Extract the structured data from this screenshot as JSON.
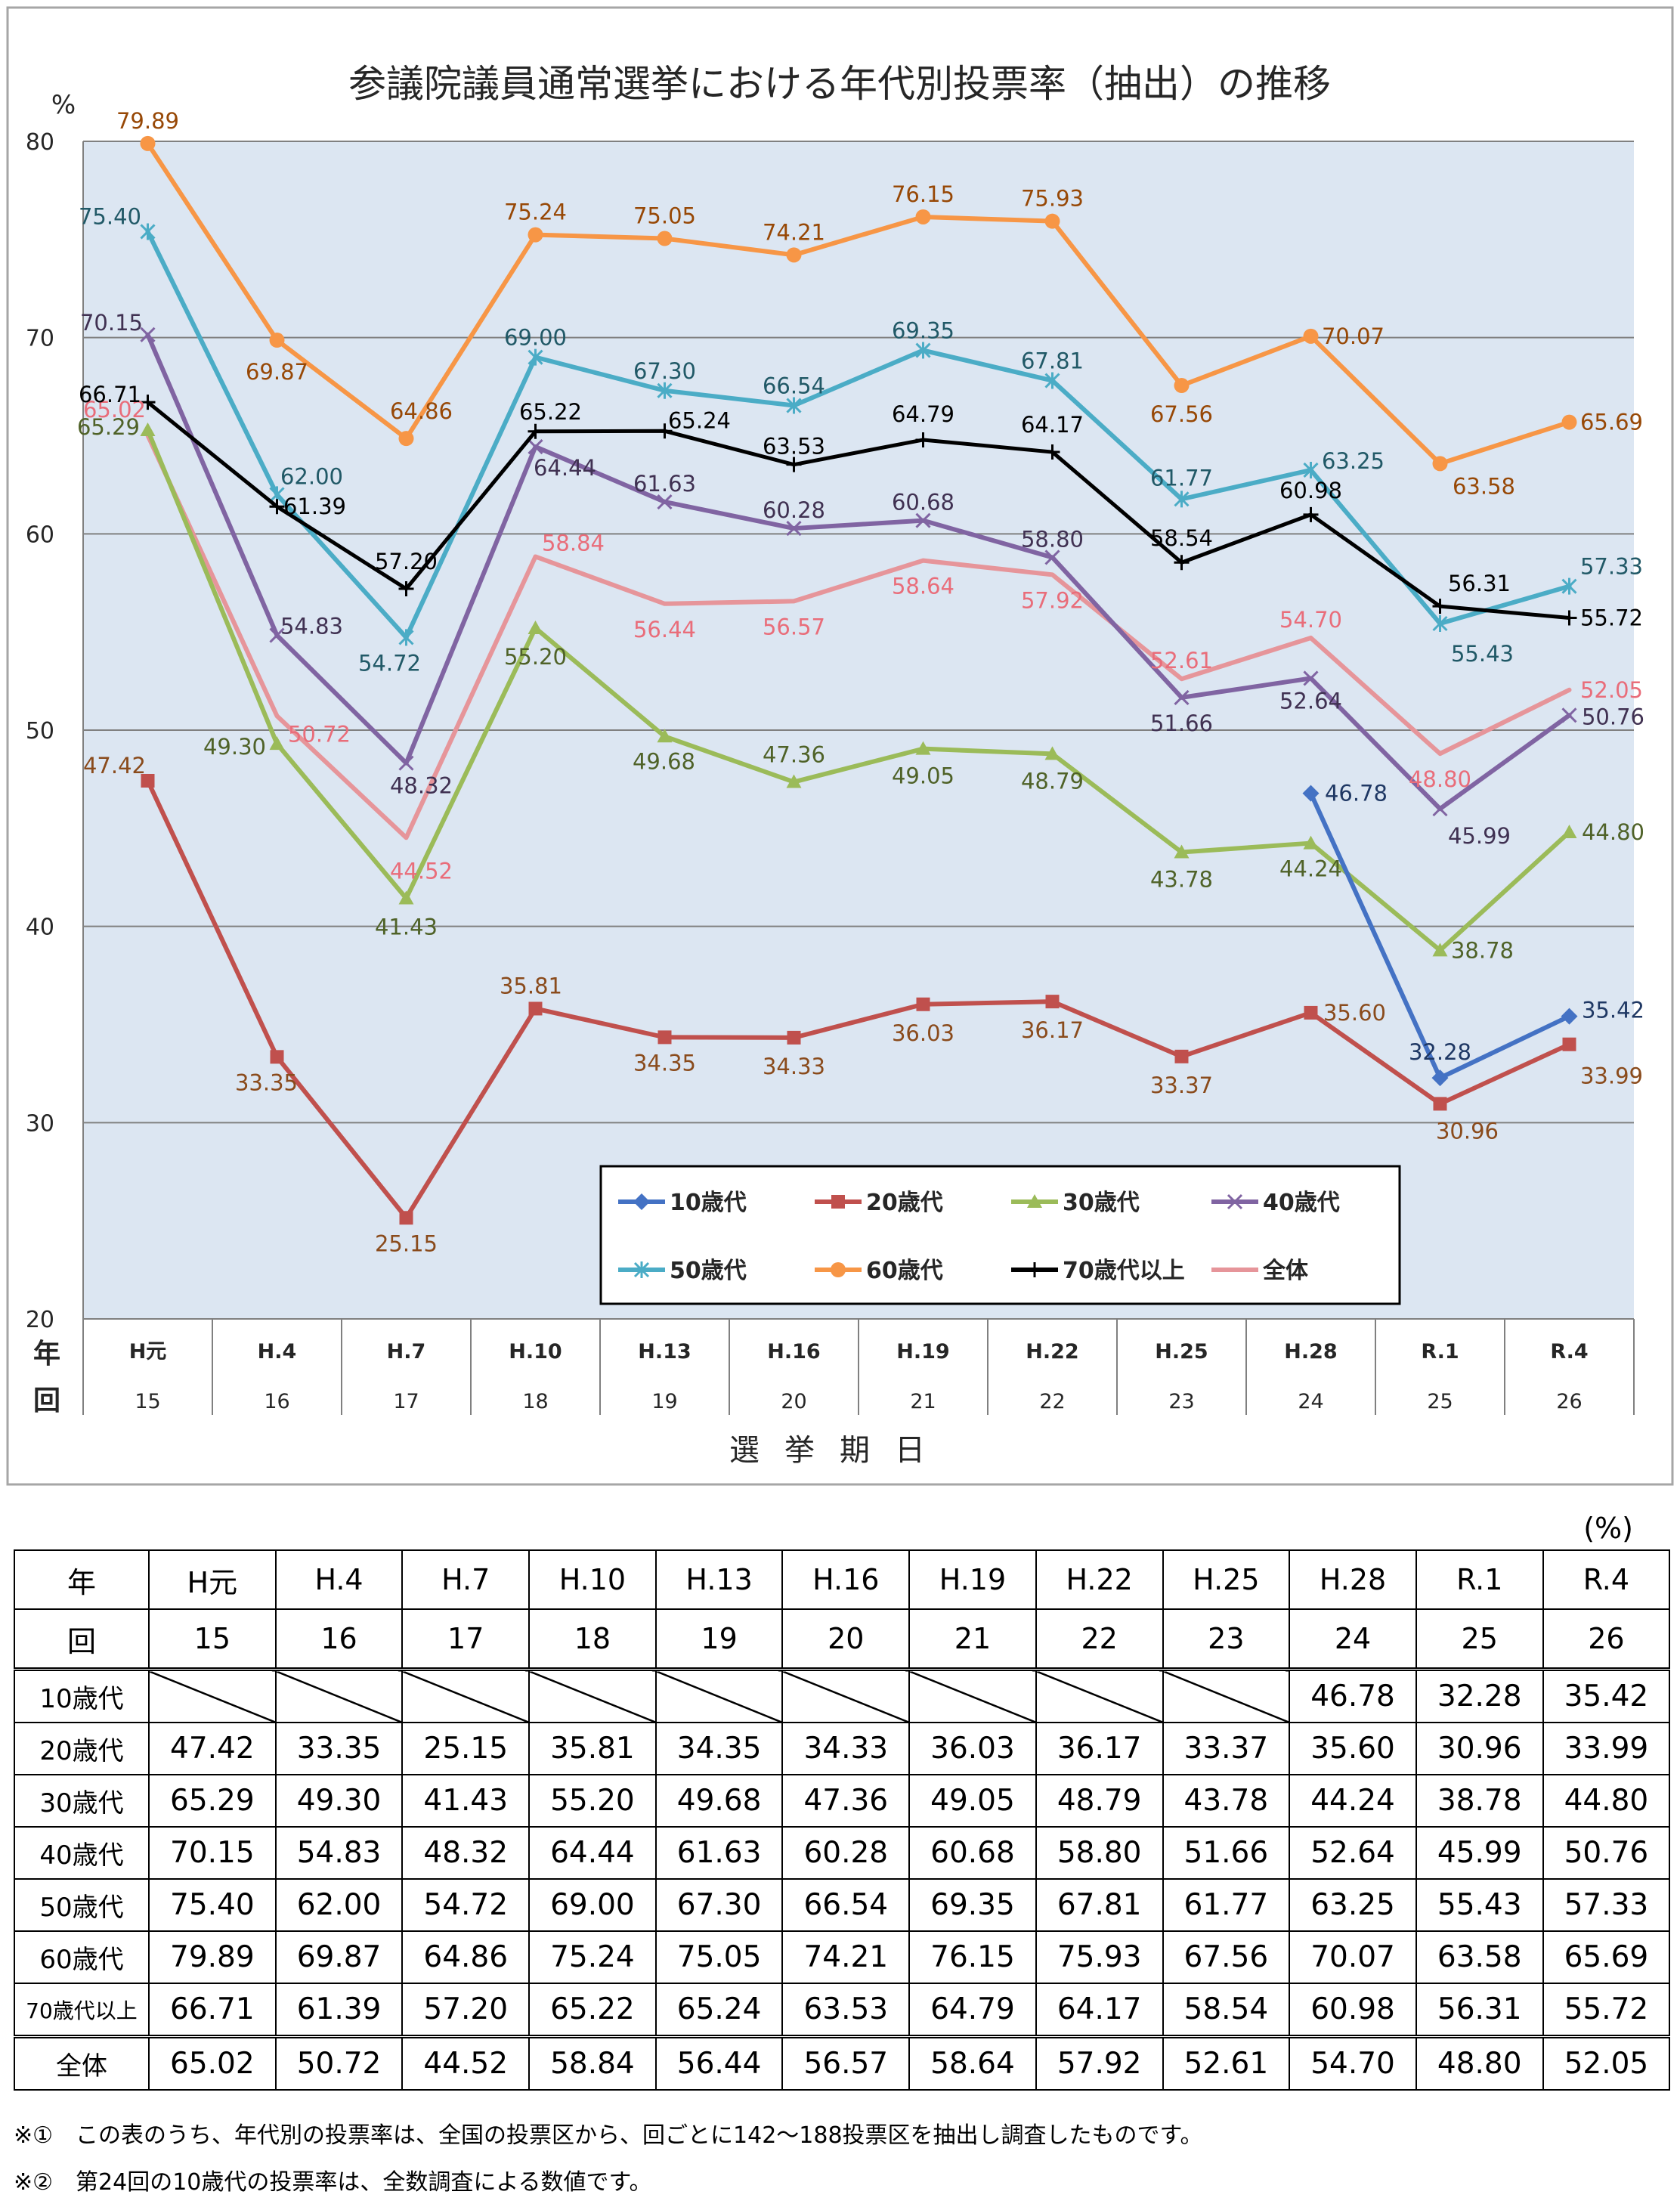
{
  "chart_data": {
    "type": "line",
    "title": "参議院議員通常選挙における年代別投票率（抽出）の推移",
    "ylabel": "%",
    "xlabel": "選挙期日",
    "axis_row_labels": [
      "年",
      "回"
    ],
    "ylim": [
      20,
      80
    ],
    "yticks": [
      20,
      30,
      40,
      50,
      60,
      70,
      80
    ],
    "grid": true,
    "legend_position": "inside-lower-right",
    "categories": [
      "H元",
      "H.4",
      "H.7",
      "H.10",
      "H.13",
      "H.16",
      "H.19",
      "H.22",
      "H.25",
      "H.28",
      "R.1",
      "R.4"
    ],
    "rounds": [
      "15",
      "16",
      "17",
      "18",
      "19",
      "20",
      "21",
      "22",
      "23",
      "24",
      "25",
      "26"
    ],
    "series": [
      {
        "name": "10歳代",
        "color": "#4472c4",
        "marker": "diamond",
        "values": [
          null,
          null,
          null,
          null,
          null,
          null,
          null,
          null,
          null,
          46.78,
          32.28,
          35.42
        ]
      },
      {
        "name": "20歳代",
        "color": "#c0504d",
        "marker": "square",
        "values": [
          47.42,
          33.35,
          25.15,
          35.81,
          34.35,
          34.33,
          36.03,
          36.17,
          33.37,
          35.6,
          30.96,
          33.99
        ]
      },
      {
        "name": "30歳代",
        "color": "#9bbb59",
        "marker": "triangle",
        "values": [
          65.29,
          49.3,
          41.43,
          55.2,
          49.68,
          47.36,
          49.05,
          48.79,
          43.78,
          44.24,
          38.78,
          44.8
        ]
      },
      {
        "name": "40歳代",
        "color": "#8064a2",
        "marker": "x",
        "values": [
          70.15,
          54.83,
          48.32,
          64.44,
          61.63,
          60.28,
          60.68,
          58.8,
          51.66,
          52.64,
          45.99,
          50.76
        ]
      },
      {
        "name": "50歳代",
        "color": "#4bacc6",
        "marker": "star",
        "values": [
          75.4,
          62.0,
          54.72,
          69.0,
          67.3,
          66.54,
          69.35,
          67.81,
          61.77,
          63.25,
          55.43,
          57.33
        ]
      },
      {
        "name": "60歳代",
        "color": "#f79646",
        "marker": "circle",
        "values": [
          79.89,
          69.87,
          64.86,
          75.24,
          75.05,
          74.21,
          76.15,
          75.93,
          67.56,
          70.07,
          63.58,
          65.69
        ]
      },
      {
        "name": "70歳代以上",
        "color": "#000000",
        "marker": "plus",
        "values": [
          66.71,
          61.39,
          57.2,
          65.22,
          65.24,
          63.53,
          64.79,
          64.17,
          58.54,
          60.98,
          56.31,
          55.72
        ]
      },
      {
        "name": "全体",
        "color": "#e6959a",
        "marker": "none",
        "values": [
          65.02,
          50.72,
          44.52,
          58.84,
          56.44,
          56.57,
          58.64,
          57.92,
          52.61,
          54.7,
          48.8,
          52.05
        ]
      }
    ],
    "label_colors": {
      "10歳代": "#1f3864",
      "20歳代": "#8a4b1c",
      "30歳代": "#4f6228",
      "40歳代": "#403152",
      "50歳代": "#215967",
      "60歳代": "#974806",
      "70歳代以上": "#000000",
      "全体": "#e96d7a"
    }
  },
  "table": {
    "unit": "(%)",
    "header_year_label": "年",
    "header_round_label": "回",
    "years": [
      "H元",
      "H.4",
      "H.7",
      "H.10",
      "H.13",
      "H.16",
      "H.19",
      "H.22",
      "H.25",
      "H.28",
      "R.1",
      "R.4"
    ],
    "rounds": [
      "15",
      "16",
      "17",
      "18",
      "19",
      "20",
      "21",
      "22",
      "23",
      "24",
      "25",
      "26"
    ],
    "rows": [
      {
        "label": "10歳代",
        "values": [
          "",
          "",
          "",
          "",
          "",
          "",
          "",
          "",
          "",
          "46.78",
          "32.28",
          "35.42"
        ]
      },
      {
        "label": "20歳代",
        "values": [
          "47.42",
          "33.35",
          "25.15",
          "35.81",
          "34.35",
          "34.33",
          "36.03",
          "36.17",
          "33.37",
          "35.60",
          "30.96",
          "33.99"
        ]
      },
      {
        "label": "30歳代",
        "values": [
          "65.29",
          "49.30",
          "41.43",
          "55.20",
          "49.68",
          "47.36",
          "49.05",
          "48.79",
          "43.78",
          "44.24",
          "38.78",
          "44.80"
        ]
      },
      {
        "label": "40歳代",
        "values": [
          "70.15",
          "54.83",
          "48.32",
          "64.44",
          "61.63",
          "60.28",
          "60.68",
          "58.80",
          "51.66",
          "52.64",
          "45.99",
          "50.76"
        ]
      },
      {
        "label": "50歳代",
        "values": [
          "75.40",
          "62.00",
          "54.72",
          "69.00",
          "67.30",
          "66.54",
          "69.35",
          "67.81",
          "61.77",
          "63.25",
          "55.43",
          "57.33"
        ]
      },
      {
        "label": "60歳代",
        "values": [
          "79.89",
          "69.87",
          "64.86",
          "75.24",
          "75.05",
          "74.21",
          "76.15",
          "75.93",
          "67.56",
          "70.07",
          "63.58",
          "65.69"
        ]
      },
      {
        "label": "70歳代以上",
        "values": [
          "66.71",
          "61.39",
          "57.20",
          "65.22",
          "65.24",
          "63.53",
          "64.79",
          "64.17",
          "58.54",
          "60.98",
          "56.31",
          "55.72"
        ]
      },
      {
        "label": "全体",
        "values": [
          "65.02",
          "50.72",
          "44.52",
          "58.84",
          "56.44",
          "56.57",
          "58.64",
          "57.92",
          "52.61",
          "54.70",
          "48.80",
          "52.05"
        ]
      }
    ]
  },
  "notes": [
    "※①　この表のうち、年代別の投票率は、全国の投票区から、回ごとに142～188投票区を抽出し調査したものです。",
    "※②　第24回の10歳代の投票率は、全数調査による数値です。"
  ]
}
